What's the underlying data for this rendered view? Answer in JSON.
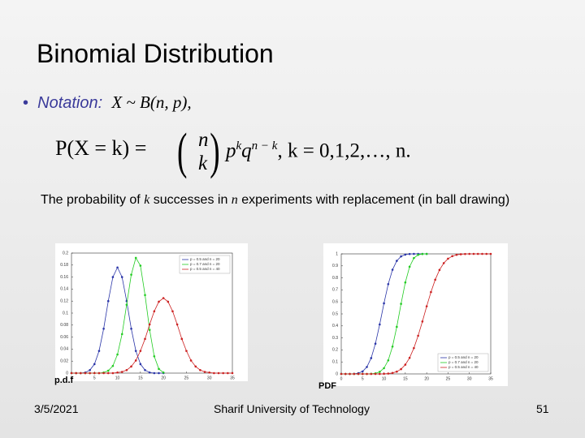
{
  "slide": {
    "title": "Binomial Distribution",
    "bullet": {
      "label": "Notation:",
      "formula": "X ~ B(n, p),"
    },
    "formula": {
      "lhs": "P(X = k) =",
      "top": "n",
      "bottom": "k",
      "p": "p",
      "pexp": "k",
      "q": "q",
      "qexp": "n − k",
      "tail": ",   k = 0,1,2,",
      "dots": "…",
      "end": ", n."
    },
    "description": {
      "before": "The probability of ",
      "k": "k",
      "middle": " successes in ",
      "n": "n",
      "after": " experiments with replacement (in ball drawing)"
    },
    "captions": [
      "p.d.f",
      "PDF"
    ],
    "footer": {
      "date": "3/5/2021",
      "center": "Sharif University of Technology",
      "page": "51"
    }
  },
  "chart_data": [
    {
      "type": "line",
      "legend": "upper right",
      "x": [
        0,
        1,
        2,
        3,
        4,
        5,
        6,
        7,
        8,
        9,
        10,
        11,
        12,
        13,
        14,
        15,
        16,
        17,
        18,
        19,
        20,
        21,
        22,
        23,
        24,
        25,
        26,
        27,
        28,
        29,
        30,
        31,
        32,
        33,
        34,
        35
      ],
      "xlim": [
        0,
        35
      ],
      "xticks": [
        0,
        5,
        10,
        15,
        20,
        25,
        30,
        35
      ],
      "ylim": [
        0,
        0.2
      ],
      "yticks": [
        0,
        0.02,
        0.04,
        0.06,
        0.08,
        0.1,
        0.12,
        0.14,
        0.16,
        0.18,
        0.2
      ],
      "series": [
        {
          "name": "p = 0.5 and n = 20",
          "color": "#2a35a8",
          "values": [
            0,
            0,
            0,
            0.001,
            0.005,
            0.015,
            0.037,
            0.074,
            0.12,
            0.16,
            0.176,
            0.16,
            0.12,
            0.074,
            0.037,
            0.015,
            0.005,
            0.001,
            0,
            0,
            0,
            null,
            null,
            null,
            null,
            null,
            null,
            null,
            null,
            null,
            null,
            null,
            null,
            null,
            null,
            null
          ]
        },
        {
          "name": "p = 0.7 and n = 20",
          "color": "#22cc22",
          "values": [
            0,
            0,
            0,
            0,
            0,
            0,
            0,
            0.001,
            0.004,
            0.012,
            0.031,
            0.065,
            0.114,
            0.164,
            0.192,
            0.179,
            0.13,
            0.072,
            0.028,
            0.007,
            0.001,
            null,
            null,
            null,
            null,
            null,
            null,
            null,
            null,
            null,
            null,
            null,
            null,
            null,
            null,
            null
          ]
        },
        {
          "name": "p = 0.5 and n = 40",
          "color": "#cc2222",
          "values": [
            0,
            0,
            0,
            0,
            0,
            0,
            0,
            0,
            0,
            0,
            0.001,
            0.002,
            0.005,
            0.011,
            0.021,
            0.037,
            0.057,
            0.081,
            0.103,
            0.119,
            0.125,
            0.119,
            0.103,
            0.081,
            0.057,
            0.037,
            0.021,
            0.011,
            0.005,
            0.002,
            0.001,
            0,
            0,
            0,
            0,
            0
          ]
        }
      ]
    },
    {
      "type": "line",
      "legend": "lower right",
      "x": [
        0,
        1,
        2,
        3,
        4,
        5,
        6,
        7,
        8,
        9,
        10,
        11,
        12,
        13,
        14,
        15,
        16,
        17,
        18,
        19,
        20,
        21,
        22,
        23,
        24,
        25,
        26,
        27,
        28,
        29,
        30,
        31,
        32,
        33,
        34,
        35
      ],
      "xlim": [
        0,
        35
      ],
      "xticks": [
        0,
        5,
        10,
        15,
        20,
        25,
        30,
        35
      ],
      "ylim": [
        0,
        1
      ],
      "yticks": [
        0,
        0.1,
        0.2,
        0.3,
        0.4,
        0.5,
        0.6,
        0.7,
        0.8,
        0.9,
        1
      ],
      "series": [
        {
          "name": "p = 0.5 and n = 20",
          "color": "#2a35a8",
          "values": [
            0,
            0,
            0,
            0.001,
            0.006,
            0.021,
            0.058,
            0.132,
            0.252,
            0.412,
            0.588,
            0.748,
            0.868,
            0.942,
            0.979,
            0.994,
            0.999,
            1,
            1,
            1,
            1,
            null,
            null,
            null,
            null,
            null,
            null,
            null,
            null,
            null,
            null,
            null,
            null,
            null,
            null,
            null
          ]
        },
        {
          "name": "p = 0.7 and n = 20",
          "color": "#22cc22",
          "values": [
            0,
            0,
            0,
            0,
            0,
            0,
            0,
            0.001,
            0.005,
            0.017,
            0.048,
            0.113,
            0.228,
            0.392,
            0.584,
            0.762,
            0.893,
            0.965,
            0.992,
            0.999,
            1,
            null,
            null,
            null,
            null,
            null,
            null,
            null,
            null,
            null,
            null,
            null,
            null,
            null,
            null,
            null
          ]
        },
        {
          "name": "p = 0.5 and n = 40",
          "color": "#cc2222",
          "values": [
            0,
            0,
            0,
            0,
            0,
            0,
            0,
            0,
            0,
            0,
            0.001,
            0.003,
            0.008,
            0.019,
            0.04,
            0.077,
            0.134,
            0.215,
            0.318,
            0.437,
            0.563,
            0.682,
            0.785,
            0.866,
            0.923,
            0.96,
            0.981,
            0.992,
            0.997,
            0.999,
            1,
            1,
            1,
            1,
            1,
            1
          ]
        }
      ]
    }
  ]
}
